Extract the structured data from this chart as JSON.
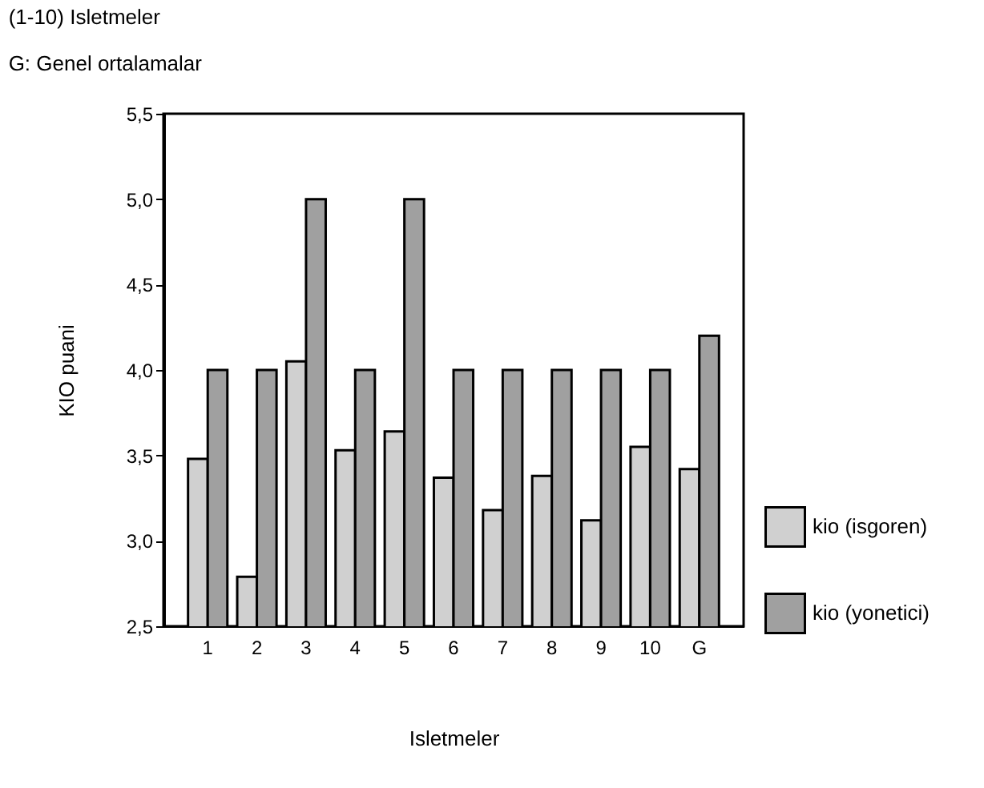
{
  "chart_data": {
    "type": "bar",
    "title": "(1-10) Isletmeler",
    "subtitle": "G: Genel ortalamalar",
    "xlabel": "Isletmeler",
    "ylabel": "KIO puani",
    "categories": [
      "1",
      "2",
      "3",
      "4",
      "5",
      "6",
      "7",
      "8",
      "9",
      "10",
      "G"
    ],
    "series": [
      {
        "name": "kio (isgoren)",
        "color": "#d0d0d0",
        "values": [
          3.48,
          2.79,
          4.05,
          3.53,
          3.64,
          3.37,
          3.18,
          3.38,
          3.12,
          3.55,
          3.42
        ]
      },
      {
        "name": "kio (yonetici)",
        "color": "#a0a0a0",
        "values": [
          4.0,
          4.0,
          5.0,
          4.0,
          5.0,
          4.0,
          4.0,
          4.0,
          4.0,
          4.0,
          4.2
        ]
      }
    ],
    "ylim": [
      2.5,
      5.5
    ],
    "yticks": [
      {
        "value": 2.5,
        "label": "2,5"
      },
      {
        "value": 3.0,
        "label": "3,0"
      },
      {
        "value": 3.5,
        "label": "3,5"
      },
      {
        "value": 4.0,
        "label": "4,0"
      },
      {
        "value": 4.5,
        "label": "4,5"
      },
      {
        "value": 5.0,
        "label": "5,0"
      },
      {
        "value": 5.5,
        "label": "5,5"
      }
    ],
    "grid": false,
    "legend": "right"
  }
}
